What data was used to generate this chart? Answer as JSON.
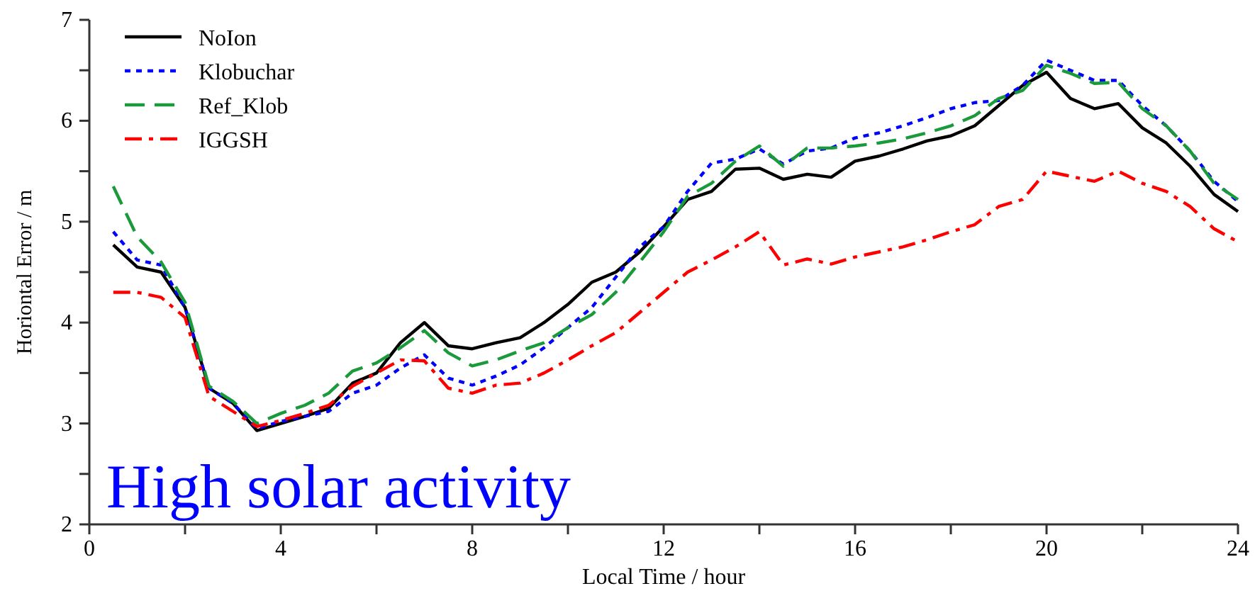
{
  "chart_data": {
    "type": "line",
    "xlabel": "Local Time / hour",
    "ylabel": "Horiontal Error / m",
    "annotations": [
      "High solar activity"
    ],
    "x": [
      0.5,
      1,
      1.5,
      2,
      2.5,
      3,
      3.5,
      4,
      4.5,
      5,
      5.5,
      6,
      6.5,
      7,
      7.5,
      8,
      8.5,
      9,
      9.5,
      10,
      10.5,
      11,
      11.5,
      12,
      12.5,
      13,
      13.5,
      14,
      14.5,
      15,
      15.5,
      16,
      16.5,
      17,
      17.5,
      18,
      18.5,
      19,
      19.5,
      20,
      20.5,
      21,
      21.5,
      22,
      22.5,
      23,
      23.5,
      24
    ],
    "series": [
      {
        "name": "NoIon",
        "color": "#000000",
        "line_style": "solid",
        "values": [
          4.77,
          4.55,
          4.5,
          4.15,
          3.35,
          3.2,
          2.93,
          3.0,
          3.07,
          3.15,
          3.4,
          3.5,
          3.8,
          4.0,
          3.77,
          3.74,
          3.8,
          3.85,
          4.0,
          4.18,
          4.4,
          4.5,
          4.7,
          4.95,
          5.22,
          5.3,
          5.52,
          5.53,
          5.42,
          5.47,
          5.44,
          5.6,
          5.65,
          5.72,
          5.8,
          5.85,
          5.95,
          6.15,
          6.35,
          6.48,
          6.22,
          6.12,
          6.17,
          5.93,
          5.78,
          5.55,
          5.27,
          5.1
        ]
      },
      {
        "name": "Klobuchar",
        "color": "#0000ff",
        "line_style": "dotted",
        "values": [
          4.9,
          4.62,
          4.57,
          4.15,
          3.35,
          3.2,
          2.95,
          3.02,
          3.07,
          3.12,
          3.3,
          3.38,
          3.55,
          3.68,
          3.45,
          3.38,
          3.47,
          3.58,
          3.75,
          3.95,
          4.15,
          4.45,
          4.75,
          4.95,
          5.3,
          5.58,
          5.62,
          5.72,
          5.57,
          5.7,
          5.73,
          5.83,
          5.88,
          5.95,
          6.03,
          6.12,
          6.18,
          6.2,
          6.35,
          6.6,
          6.5,
          6.4,
          6.4,
          6.15,
          5.95,
          5.7,
          5.4,
          5.2
        ]
      },
      {
        "name": "Ref_Klob",
        "color": "#1a9a3a",
        "line_style": "dashed",
        "values": [
          5.35,
          4.85,
          4.6,
          4.2,
          3.37,
          3.22,
          3.0,
          3.1,
          3.18,
          3.3,
          3.52,
          3.6,
          3.75,
          3.92,
          3.7,
          3.57,
          3.63,
          3.72,
          3.8,
          3.95,
          4.08,
          4.3,
          4.6,
          4.9,
          5.25,
          5.38,
          5.6,
          5.75,
          5.55,
          5.73,
          5.73,
          5.75,
          5.78,
          5.82,
          5.88,
          5.95,
          6.05,
          6.22,
          6.3,
          6.55,
          6.47,
          6.37,
          6.38,
          6.12,
          5.95,
          5.7,
          5.38,
          5.22
        ]
      },
      {
        "name": "IGGSH",
        "color": "#ff0000",
        "line_style": "dashdot",
        "values": [
          4.3,
          4.3,
          4.25,
          4.05,
          3.27,
          3.12,
          2.97,
          3.03,
          3.1,
          3.18,
          3.37,
          3.5,
          3.63,
          3.62,
          3.35,
          3.3,
          3.38,
          3.4,
          3.5,
          3.63,
          3.77,
          3.9,
          4.1,
          4.3,
          4.5,
          4.62,
          4.75,
          4.9,
          4.57,
          4.63,
          4.58,
          4.65,
          4.7,
          4.75,
          4.82,
          4.9,
          4.97,
          5.15,
          5.22,
          5.5,
          5.45,
          5.4,
          5.5,
          5.38,
          5.3,
          5.15,
          4.93,
          4.8
        ]
      }
    ],
    "xlim": [
      0,
      24
    ],
    "xticks": [
      0,
      {
        "value": 2,
        "label": null
      },
      4,
      {
        "value": 6,
        "label": null
      },
      8,
      {
        "value": 10,
        "label": null
      },
      12,
      {
        "value": 14,
        "label": null
      },
      16,
      {
        "value": 18,
        "label": null
      },
      20,
      {
        "value": 22,
        "label": null
      },
      24
    ],
    "ylim": [
      2,
      7
    ],
    "yticks": [
      2,
      {
        "value": 2.5,
        "label": null
      },
      3,
      {
        "value": 3.5,
        "label": null
      },
      4,
      {
        "value": 4.5,
        "label": null
      },
      5,
      {
        "value": 5.5,
        "label": null
      },
      6,
      {
        "value": 6.5,
        "label": null
      },
      7
    ],
    "grid": false,
    "legend": "top left",
    "marker": "none"
  }
}
